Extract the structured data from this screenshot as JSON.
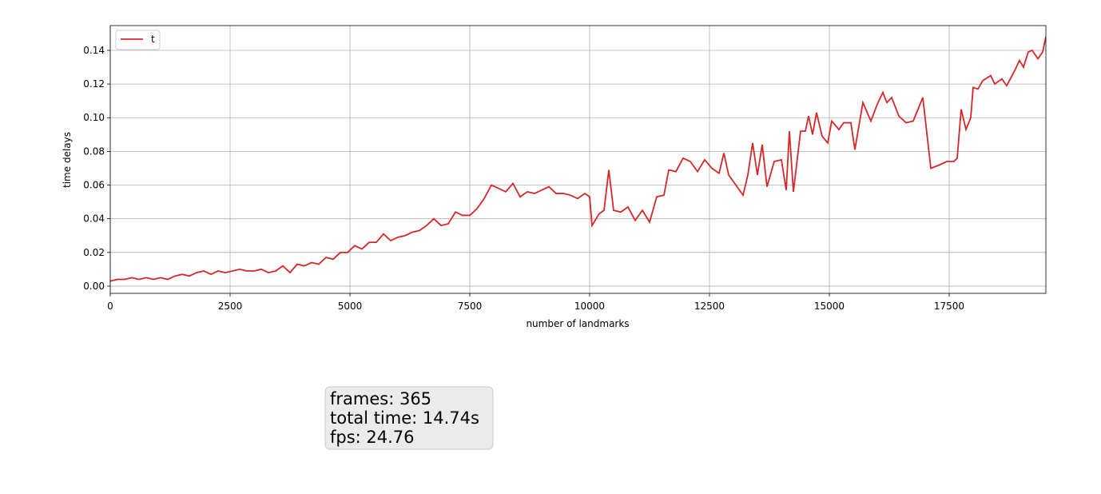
{
  "chart_data": {
    "type": "line",
    "xlabel": "number of landmarks",
    "ylabel": "time delays",
    "x": [
      0,
      150,
      300,
      450,
      600,
      750,
      900,
      1050,
      1200,
      1350,
      1500,
      1650,
      1800,
      1950,
      2100,
      2250,
      2400,
      2550,
      2700,
      2850,
      3000,
      3150,
      3300,
      3450,
      3600,
      3750,
      3900,
      4050,
      4200,
      4350,
      4500,
      4650,
      4800,
      4950,
      5100,
      5250,
      5400,
      5550,
      5700,
      5850,
      6000,
      6150,
      6300,
      6450,
      6600,
      6750,
      6900,
      7050,
      7200,
      7350,
      7500,
      7650,
      7800,
      7950,
      8100,
      8250,
      8400,
      8550,
      8700,
      8850,
      9000,
      9150,
      9300,
      9450,
      9600,
      9750,
      9900,
      10000,
      10050,
      10200,
      10300,
      10400,
      10500,
      10650,
      10800,
      10950,
      11100,
      11250,
      11400,
      11550,
      11650,
      11800,
      11950,
      12100,
      12250,
      12400,
      12550,
      12700,
      12800,
      12900,
      13050,
      13200,
      13300,
      13400,
      13500,
      13600,
      13700,
      13850,
      14000,
      14100,
      14167,
      14250,
      14400,
      14500,
      14567,
      14650,
      14733,
      14850,
      14967,
      15050,
      15200,
      15300,
      15450,
      15533,
      15700,
      15867,
      16000,
      16117,
      16200,
      16300,
      16450,
      16600,
      16750,
      16950,
      17117,
      17300,
      17450,
      17600,
      17667,
      17750,
      17850,
      17950,
      18000,
      18100,
      18200,
      18367,
      18450,
      18600,
      18700,
      18850,
      18967,
      19050,
      19150,
      19233,
      19350,
      19450,
      19517
    ],
    "series": [
      {
        "name": "t",
        "color": "#d62728",
        "values": [
          0.003,
          0.004,
          0.004,
          0.005,
          0.004,
          0.005,
          0.004,
          0.005,
          0.004,
          0.006,
          0.007,
          0.006,
          0.008,
          0.009,
          0.007,
          0.009,
          0.008,
          0.009,
          0.01,
          0.009,
          0.009,
          0.01,
          0.008,
          0.009,
          0.012,
          0.008,
          0.013,
          0.012,
          0.014,
          0.013,
          0.017,
          0.016,
          0.02,
          0.02,
          0.024,
          0.022,
          0.026,
          0.026,
          0.031,
          0.027,
          0.029,
          0.03,
          0.032,
          0.033,
          0.036,
          0.04,
          0.036,
          0.037,
          0.044,
          0.042,
          0.042,
          0.046,
          0.052,
          0.06,
          0.058,
          0.056,
          0.061,
          0.053,
          0.056,
          0.055,
          0.057,
          0.059,
          0.055,
          0.055,
          0.054,
          0.052,
          0.055,
          0.053,
          0.036,
          0.043,
          0.045,
          0.069,
          0.045,
          0.044,
          0.047,
          0.039,
          0.045,
          0.038,
          0.053,
          0.054,
          0.069,
          0.068,
          0.076,
          0.074,
          0.068,
          0.075,
          0.07,
          0.067,
          0.079,
          0.066,
          0.06,
          0.054,
          0.066,
          0.085,
          0.066,
          0.084,
          0.059,
          0.074,
          0.075,
          0.057,
          0.092,
          0.056,
          0.092,
          0.092,
          0.101,
          0.09,
          0.103,
          0.089,
          0.085,
          0.098,
          0.093,
          0.097,
          0.097,
          0.081,
          0.109,
          0.098,
          0.108,
          0.115,
          0.109,
          0.112,
          0.101,
          0.097,
          0.098,
          0.112,
          0.07,
          0.072,
          0.074,
          0.074,
          0.076,
          0.105,
          0.093,
          0.1,
          0.118,
          0.117,
          0.122,
          0.125,
          0.12,
          0.123,
          0.119,
          0.127,
          0.134,
          0.13,
          0.139,
          0.14,
          0.135,
          0.139,
          0.148
        ]
      }
    ],
    "xlim": [
      0,
      19517
    ],
    "ylim": [
      -0.0043,
      0.1547
    ],
    "xticks": [
      0,
      2500,
      5000,
      7500,
      10000,
      12500,
      15000,
      17500
    ],
    "yticks": [
      {
        "value": 0,
        "label": "0.00"
      },
      {
        "value": 0.02,
        "label": "0.02"
      },
      {
        "value": 0.04,
        "label": "0.04"
      },
      {
        "value": 0.06,
        "label": "0.06"
      },
      {
        "value": 0.08,
        "label": "0.08"
      },
      {
        "value": 0.1,
        "label": "0.10"
      },
      {
        "value": 0.12,
        "label": "0.12"
      },
      {
        "value": 0.14,
        "label": "0.14"
      }
    ],
    "grid": true,
    "legend": "upper left",
    "text_box": [
      "frames: 365",
      "total time: 14.74s",
      "fps: 24.76"
    ]
  }
}
